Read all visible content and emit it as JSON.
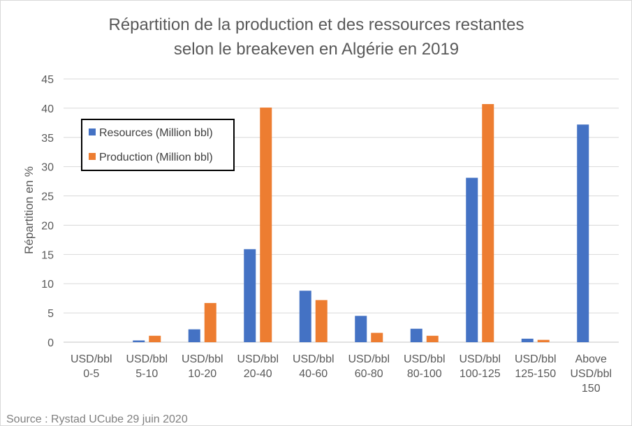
{
  "chart_data": {
    "type": "bar",
    "title": [
      "Répartition de la production et des ressources restantes",
      "selon le breakeven en Algérie en 2019"
    ],
    "ylabel": "Répartition en %",
    "xlabel": "",
    "ylim": [
      0,
      45
    ],
    "yticks": [
      0,
      5,
      10,
      15,
      20,
      25,
      30,
      35,
      40,
      45
    ],
    "grid": true,
    "legend_position": "top-left",
    "categories": [
      [
        "USD/bbl",
        "0-5"
      ],
      [
        "USD/bbl",
        "5-10"
      ],
      [
        "USD/bbl",
        "10-20"
      ],
      [
        "USD/bbl",
        "20-40"
      ],
      [
        "USD/bbl",
        "40-60"
      ],
      [
        "USD/bbl",
        "60-80"
      ],
      [
        "USD/bbl",
        "80-100"
      ],
      [
        "USD/bbl",
        "100-125"
      ],
      [
        "USD/bbl",
        "125-150"
      ],
      [
        "Above",
        "USD/bbl",
        "150"
      ]
    ],
    "series": [
      {
        "name": "Resources (Million bbl)",
        "color": "#4472C4",
        "values": [
          0,
          0.3,
          2.2,
          15.9,
          8.8,
          4.5,
          2.3,
          28.1,
          0.6,
          37.2
        ]
      },
      {
        "name": "Production (Million bbl)",
        "color": "#ED7D31",
        "values": [
          0,
          1.1,
          6.7,
          40.1,
          7.2,
          1.6,
          1.1,
          40.7,
          0.4,
          0
        ]
      }
    ],
    "source": "Source : Rystad UCube 29 juin 2020"
  }
}
